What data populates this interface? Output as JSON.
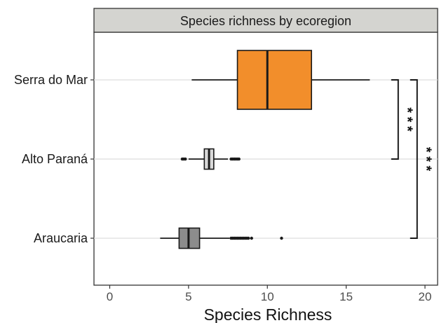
{
  "chart_data": {
    "type": "boxplot",
    "orientation": "horizontal",
    "title": "Species richness by ecoregion",
    "xlabel": "Species Richness",
    "ylabel": "",
    "xlim": [
      -1,
      20.8
    ],
    "xticks": [
      0,
      5,
      10,
      15,
      20
    ],
    "grid": "horizontal major lines only",
    "legend": "none",
    "categories": [
      "Serra do Mar",
      "Alto Paraná",
      "Araucaria"
    ],
    "boxes": [
      {
        "category": "Serra do Mar",
        "whisker_low": 5.2,
        "q1": 8.1,
        "median": 10.0,
        "q3": 12.8,
        "whisker_high": 16.5,
        "outliers": [],
        "color": "#f28e2b"
      },
      {
        "category": "Alto Paraná",
        "whisker_low": 5.0,
        "q1": 6.0,
        "median": 6.3,
        "q3": 6.6,
        "whisker_high": 7.5,
        "outliers": [
          4.6,
          4.7,
          4.8,
          7.7,
          7.8,
          7.9,
          8.0,
          8.1,
          8.2
        ],
        "color": "#d9d9d9"
      },
      {
        "category": "Araucaria",
        "whisker_low": 3.2,
        "q1": 4.4,
        "median": 5.0,
        "q3": 5.7,
        "whisker_high": 7.6,
        "outliers": [
          7.7,
          7.8,
          7.9,
          8.0,
          8.1,
          8.2,
          8.3,
          8.4,
          8.5,
          8.6,
          8.7,
          8.8,
          9.0,
          10.9
        ],
        "color": "#8c8c8c"
      }
    ],
    "significance": [
      {
        "from": "Serra do Mar",
        "to": "Alto Paraná",
        "label": "* * *",
        "x": 18.3
      },
      {
        "from": "Serra do Mar",
        "to": "Araucaria",
        "label": "* * *",
        "x": 19.5
      }
    ]
  }
}
